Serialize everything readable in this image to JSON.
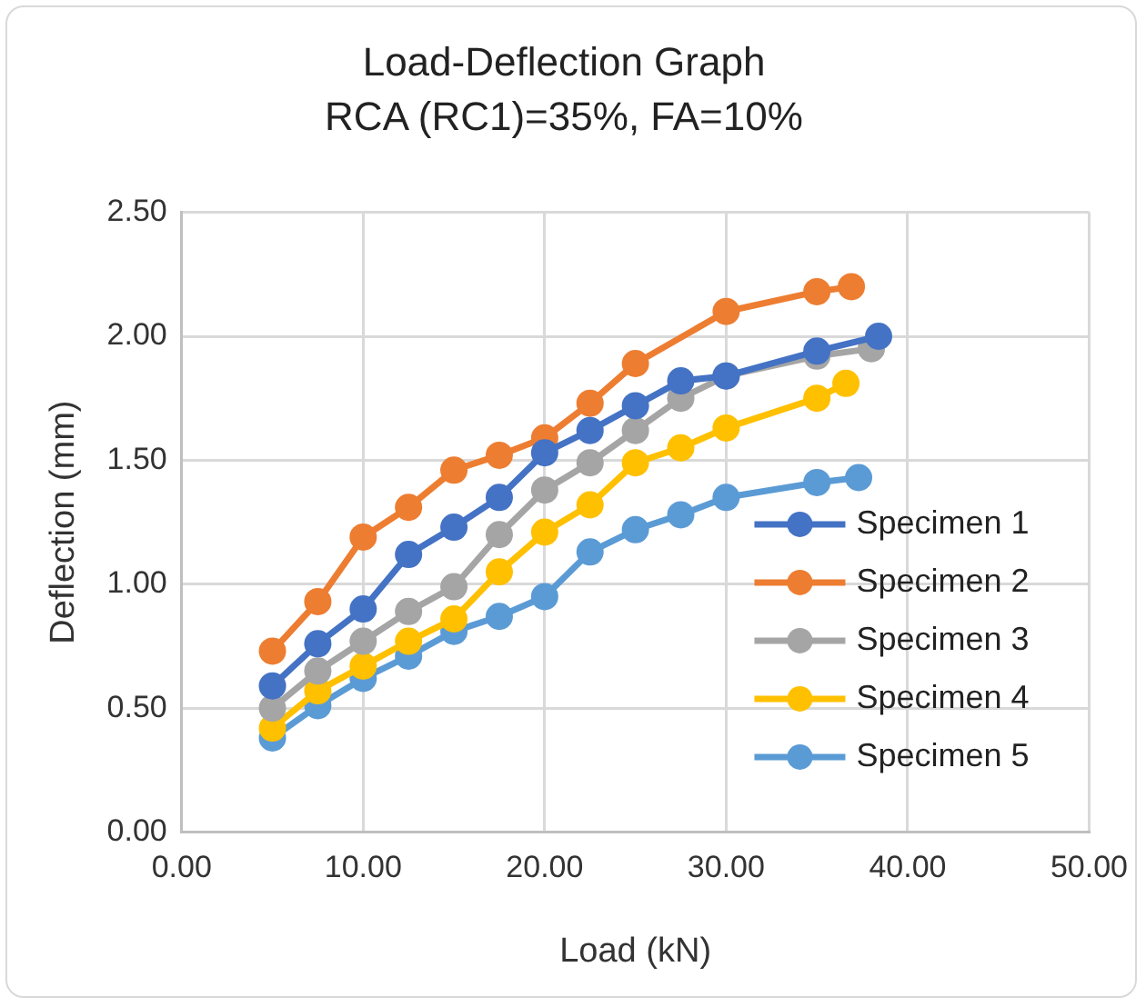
{
  "chart_data": {
    "type": "line",
    "title": "Load-Deflection Graph",
    "subtitle": "RCA (RC1)=35%, FA=10%",
    "xlabel": "Load (kN)",
    "ylabel": "Deflection (mm)",
    "xlim": [
      0,
      50
    ],
    "xticks": [
      {
        "value": 0,
        "label": "0.00"
      },
      {
        "value": 10,
        "label": "10.00"
      },
      {
        "value": 20,
        "label": "20.00"
      },
      {
        "value": 30,
        "label": "30.00"
      },
      {
        "value": 40,
        "label": "40.00"
      },
      {
        "value": 50,
        "label": "50.00"
      }
    ],
    "ylim": [
      0,
      2.5
    ],
    "yticks": [
      {
        "value": 0,
        "label": "0.00"
      },
      {
        "value": 0.5,
        "label": "0.50"
      },
      {
        "value": 1,
        "label": "1.00"
      },
      {
        "value": 1.5,
        "label": "1.50"
      },
      {
        "value": 2,
        "label": "2.00"
      },
      {
        "value": 2.5,
        "label": "2.50"
      }
    ],
    "grid": true,
    "legend": "right",
    "marker": "circle",
    "line_style": "solid",
    "series": [
      {
        "name": "Specimen 1",
        "color": "#4472c4",
        "x": [
          5,
          7.5,
          10,
          12.5,
          15,
          17.5,
          20,
          22.5,
          25,
          27.5,
          30,
          35,
          38.4
        ],
        "values": [
          0.59,
          0.76,
          0.9,
          1.12,
          1.23,
          1.35,
          1.53,
          1.62,
          1.72,
          1.82,
          1.84,
          1.94,
          2.0
        ]
      },
      {
        "name": "Specimen 2",
        "color": "#ed7d31",
        "x": [
          5,
          7.5,
          10,
          12.5,
          15,
          17.5,
          20,
          22.5,
          25,
          30,
          35,
          36.9
        ],
        "values": [
          0.73,
          0.93,
          1.19,
          1.31,
          1.46,
          1.52,
          1.59,
          1.73,
          1.89,
          2.1,
          2.18,
          2.2
        ]
      },
      {
        "name": "Specimen 3",
        "color": "#a5a5a5",
        "x": [
          5,
          7.5,
          10,
          12.5,
          15,
          17.5,
          20,
          22.5,
          25,
          27.5,
          30,
          35,
          38
        ],
        "values": [
          0.5,
          0.65,
          0.77,
          0.89,
          0.99,
          1.2,
          1.38,
          1.49,
          1.62,
          1.75,
          1.84,
          1.92,
          1.95
        ]
      },
      {
        "name": "Specimen 4",
        "color": "#ffc000",
        "x": [
          5,
          7.5,
          10,
          12.5,
          15,
          17.5,
          20,
          22.5,
          25,
          27.5,
          30,
          35,
          36.6
        ],
        "values": [
          0.42,
          0.57,
          0.67,
          0.77,
          0.86,
          1.05,
          1.21,
          1.32,
          1.49,
          1.55,
          1.63,
          1.75,
          1.81
        ]
      },
      {
        "name": "Specimen 5",
        "color": "#5b9bd5",
        "x": [
          5,
          7.5,
          10,
          12.5,
          15,
          17.5,
          20,
          22.5,
          25,
          27.5,
          30,
          35,
          37.3
        ],
        "values": [
          0.38,
          0.51,
          0.62,
          0.71,
          0.81,
          0.87,
          0.95,
          1.13,
          1.22,
          1.28,
          1.35,
          1.41,
          1.43
        ]
      }
    ]
  }
}
